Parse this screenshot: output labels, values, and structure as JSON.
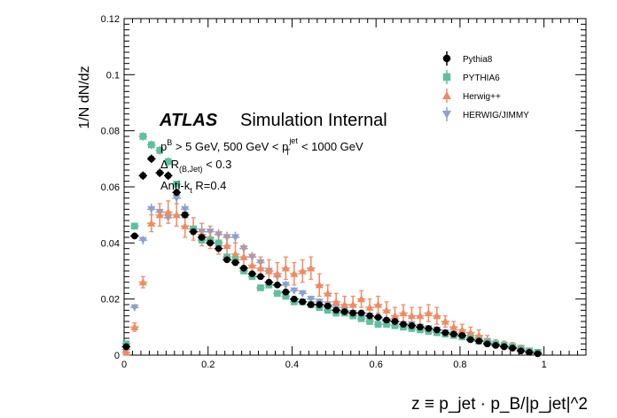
{
  "chart_data": {
    "type": "scatter",
    "title": "",
    "xlabel": "z ≡ p_jet · p_B/|p_jet|^2",
    "ylabel": "1/N dN/dz",
    "xlim": [
      0,
      1.1
    ],
    "ylim": [
      0,
      0.12
    ],
    "x_ticks": [
      "0",
      "0.2",
      "0.4",
      "0.6",
      "0.8",
      "1"
    ],
    "y_ticks": [
      "0",
      "0.02",
      "0.04",
      "0.06",
      "0.08",
      "0.1",
      "0.12"
    ],
    "grid": false,
    "legend_position": "top-right",
    "annotations": {
      "atlas": "ATLAS",
      "simulation": "Simulation Internal",
      "line1_a": "p",
      "line1_b_sup": "B",
      "line1_c": " > 5 GeV, 500 GeV < p",
      "line1_d_sup": "jet",
      "line1_d_sub": "T",
      "line1_e": " < 1000 GeV",
      "line2_a": "Δ R",
      "line2_sub": "(B,Jet)",
      "line2_b": " < 0.3",
      "line3_a": "Anti-k",
      "line3_sub": "t",
      "line3_b": " R=0.4"
    },
    "series": [
      {
        "name": "Pythia8",
        "color": "#000000",
        "marker": "circle",
        "x": [
          0.005,
          0.025,
          0.045,
          0.065,
          0.085,
          0.105,
          0.125,
          0.145,
          0.165,
          0.185,
          0.205,
          0.225,
          0.245,
          0.265,
          0.285,
          0.305,
          0.325,
          0.345,
          0.365,
          0.385,
          0.405,
          0.425,
          0.445,
          0.465,
          0.485,
          0.505,
          0.525,
          0.545,
          0.565,
          0.585,
          0.605,
          0.625,
          0.645,
          0.665,
          0.685,
          0.705,
          0.725,
          0.745,
          0.765,
          0.785,
          0.805,
          0.825,
          0.845,
          0.865,
          0.885,
          0.905,
          0.925,
          0.945,
          0.965,
          0.985
        ],
        "y": [
          0.003,
          0.0425,
          0.064,
          0.07,
          0.065,
          0.064,
          0.058,
          0.05,
          0.044,
          0.042,
          0.04,
          0.038,
          0.034,
          0.033,
          0.031,
          0.029,
          0.028,
          0.026,
          0.025,
          0.0225,
          0.02,
          0.019,
          0.018,
          0.018,
          0.0175,
          0.016,
          0.0155,
          0.015,
          0.015,
          0.014,
          0.0135,
          0.0125,
          0.012,
          0.011,
          0.0105,
          0.01,
          0.0095,
          0.009,
          0.008,
          0.0075,
          0.007,
          0.0055,
          0.005,
          0.004,
          0.0035,
          0.003,
          0.0025,
          0.0015,
          0.001,
          0.0005
        ],
        "err": [
          0.0005,
          0.0012,
          0.0015,
          0.0015,
          0.0015,
          0.0015,
          0.0012,
          0.0012,
          0.001,
          0.001,
          0.001,
          0.0008,
          0.0008,
          0.0008,
          0.0007,
          0.0007,
          0.0007,
          0.0006,
          0.0006,
          0.0006,
          0.0006,
          0.0006,
          0.0005,
          0.0005,
          0.0005,
          0.0005,
          0.0005,
          0.0005,
          0.0005,
          0.0005,
          0.0005,
          0.0005,
          0.0005,
          0.0005,
          0.0005,
          0.0005,
          0.0004,
          0.0004,
          0.0004,
          0.0004,
          0.0004,
          0.0004,
          0.0004,
          0.0004,
          0.0003,
          0.0003,
          0.0003,
          0.0003,
          0.0003,
          0.0003
        ]
      },
      {
        "name": "PYTHIA6",
        "color": "#5fbf9f",
        "marker": "square",
        "x": [
          0.005,
          0.025,
          0.045,
          0.065,
          0.085,
          0.105,
          0.125,
          0.145,
          0.165,
          0.185,
          0.205,
          0.225,
          0.245,
          0.265,
          0.285,
          0.305,
          0.325,
          0.345,
          0.365,
          0.385,
          0.405,
          0.425,
          0.445,
          0.465,
          0.485,
          0.505,
          0.525,
          0.545,
          0.565,
          0.585,
          0.605,
          0.625,
          0.645,
          0.665,
          0.685,
          0.705,
          0.725,
          0.745,
          0.765,
          0.785,
          0.805,
          0.825,
          0.845,
          0.865,
          0.885,
          0.905,
          0.925,
          0.945,
          0.965,
          0.985
        ],
        "y": [
          0.004,
          0.046,
          0.078,
          0.075,
          0.073,
          0.069,
          0.061,
          0.05,
          0.045,
          0.041,
          0.041,
          0.04,
          0.035,
          0.034,
          0.03,
          0.028,
          0.024,
          0.025,
          0.022,
          0.021,
          0.019,
          0.019,
          0.018,
          0.017,
          0.016,
          0.015,
          0.015,
          0.014,
          0.013,
          0.012,
          0.011,
          0.011,
          0.0105,
          0.01,
          0.0095,
          0.009,
          0.0085,
          0.008,
          0.0075,
          0.007,
          0.0065,
          0.006,
          0.005,
          0.0045,
          0.004,
          0.0035,
          0.003,
          0.002,
          0.0015,
          0.001
        ],
        "err": [
          0.0005,
          0.0012,
          0.0015,
          0.0015,
          0.0015,
          0.0015,
          0.0012,
          0.0012,
          0.001,
          0.001,
          0.001,
          0.0008,
          0.0008,
          0.0008,
          0.0007,
          0.0007,
          0.0007,
          0.0006,
          0.0006,
          0.0006,
          0.0006,
          0.0006,
          0.0005,
          0.0005,
          0.0005,
          0.0005,
          0.0005,
          0.0005,
          0.0005,
          0.0005,
          0.0005,
          0.0005,
          0.0005,
          0.0005,
          0.0005,
          0.0005,
          0.0004,
          0.0004,
          0.0004,
          0.0004,
          0.0004,
          0.0004,
          0.0004,
          0.0004,
          0.0003,
          0.0003,
          0.0003,
          0.0003,
          0.0003,
          0.0003
        ]
      },
      {
        "name": "Herwig++",
        "color": "#ef8a62",
        "marker": "triangle-up",
        "x": [
          0.005,
          0.025,
          0.045,
          0.065,
          0.085,
          0.105,
          0.125,
          0.145,
          0.165,
          0.185,
          0.205,
          0.225,
          0.245,
          0.265,
          0.285,
          0.305,
          0.325,
          0.345,
          0.365,
          0.385,
          0.405,
          0.425,
          0.445,
          0.465,
          0.485,
          0.505,
          0.525,
          0.545,
          0.565,
          0.585,
          0.605,
          0.625,
          0.645,
          0.665,
          0.685,
          0.705,
          0.725,
          0.745,
          0.765,
          0.785,
          0.805,
          0.825,
          0.845,
          0.865,
          0.885,
          0.905,
          0.925,
          0.945,
          0.965,
          0.985
        ],
        "y": [
          0.001,
          0.01,
          0.026,
          0.047,
          0.05,
          0.051,
          0.05,
          0.046,
          0.045,
          0.043,
          0.042,
          0.04,
          0.039,
          0.036,
          0.035,
          0.032,
          0.031,
          0.03,
          0.029,
          0.031,
          0.029,
          0.03,
          0.031,
          0.025,
          0.022,
          0.019,
          0.018,
          0.018,
          0.02,
          0.017,
          0.018,
          0.016,
          0.014,
          0.015,
          0.014,
          0.014,
          0.015,
          0.014,
          0.012,
          0.01,
          0.009,
          0.008,
          0.007,
          0.005,
          0.004,
          0.0035,
          0.003,
          0.0025,
          0.0015,
          0.001
        ],
        "err": [
          0.0005,
          0.0015,
          0.002,
          0.003,
          0.004,
          0.004,
          0.004,
          0.004,
          0.004,
          0.004,
          0.004,
          0.004,
          0.004,
          0.004,
          0.004,
          0.004,
          0.004,
          0.004,
          0.004,
          0.004,
          0.004,
          0.004,
          0.004,
          0.004,
          0.003,
          0.003,
          0.003,
          0.003,
          0.003,
          0.003,
          0.003,
          0.003,
          0.003,
          0.003,
          0.003,
          0.003,
          0.003,
          0.003,
          0.002,
          0.002,
          0.002,
          0.002,
          0.002,
          0.002,
          0.0015,
          0.0015,
          0.0015,
          0.001,
          0.001,
          0.001
        ]
      },
      {
        "name": "HERWIG/JIMMY",
        "color": "#8da0cb",
        "marker": "triangle-down",
        "x": [
          0.005,
          0.025,
          0.045,
          0.065,
          0.085,
          0.105,
          0.125,
          0.145,
          0.165,
          0.185,
          0.205,
          0.225,
          0.245,
          0.265,
          0.285,
          0.305,
          0.325,
          0.345,
          0.365,
          0.385,
          0.405,
          0.425,
          0.445,
          0.465,
          0.485,
          0.505,
          0.525,
          0.545,
          0.565,
          0.585,
          0.605,
          0.625,
          0.645,
          0.665,
          0.685,
          0.705,
          0.725,
          0.745,
          0.765,
          0.785,
          0.805,
          0.825,
          0.845,
          0.865,
          0.885,
          0.905,
          0.925,
          0.945,
          0.965,
          0.985
        ],
        "y": [
          0.002,
          0.017,
          0.041,
          0.052,
          0.051,
          0.049,
          0.056,
          0.052,
          0.045,
          0.044,
          0.044,
          0.043,
          0.042,
          0.042,
          0.038,
          0.035,
          0.033,
          0.03,
          0.028,
          0.025,
          0.023,
          0.022,
          0.02,
          0.019,
          0.018,
          0.017,
          0.016,
          0.015,
          0.014,
          0.014,
          0.013,
          0.012,
          0.012,
          0.011,
          0.011,
          0.01,
          0.0095,
          0.009,
          0.008,
          0.0075,
          0.007,
          0.006,
          0.0055,
          0.005,
          0.004,
          0.0035,
          0.003,
          0.0025,
          0.0015,
          0.001
        ],
        "err": [
          0.0005,
          0.0012,
          0.0015,
          0.002,
          0.002,
          0.002,
          0.002,
          0.002,
          0.002,
          0.002,
          0.002,
          0.002,
          0.002,
          0.002,
          0.0018,
          0.0018,
          0.0015,
          0.0015,
          0.0015,
          0.0015,
          0.0012,
          0.0012,
          0.0012,
          0.0012,
          0.001,
          0.001,
          0.001,
          0.001,
          0.001,
          0.001,
          0.001,
          0.001,
          0.001,
          0.001,
          0.001,
          0.001,
          0.0008,
          0.0008,
          0.0008,
          0.0008,
          0.0008,
          0.0008,
          0.0006,
          0.0006,
          0.0006,
          0.0005,
          0.0005,
          0.0005,
          0.0005,
          0.0005
        ]
      }
    ]
  }
}
